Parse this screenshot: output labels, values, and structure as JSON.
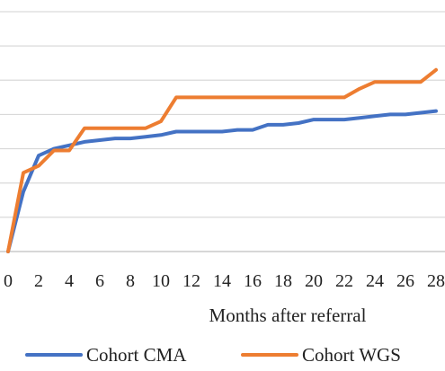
{
  "chart_data": {
    "type": "line",
    "title": "",
    "xlabel": "Months after referral",
    "ylabel": "",
    "x_ticks": [
      "0",
      "2",
      "4",
      "6",
      "8",
      "10",
      "12",
      "14",
      "16",
      "18",
      "20",
      "22",
      "24",
      "26",
      "28"
    ],
    "xlim": [
      0,
      28
    ],
    "ylim": [
      0,
      7
    ],
    "grid": true,
    "legend_position": "bottom",
    "series": [
      {
        "name": "Cohort CMA",
        "color": "#4472C4",
        "x": [
          0,
          1,
          2,
          3,
          4,
          5,
          6,
          7,
          8,
          9,
          10,
          11,
          12,
          13,
          14,
          15,
          16,
          17,
          18,
          19,
          20,
          21,
          22,
          23,
          24,
          25,
          26,
          27,
          28
        ],
        "y": [
          0,
          1.75,
          2.8,
          3.0,
          3.1,
          3.2,
          3.25,
          3.3,
          3.3,
          3.35,
          3.4,
          3.5,
          3.5,
          3.5,
          3.5,
          3.55,
          3.55,
          3.7,
          3.7,
          3.75,
          3.85,
          3.85,
          3.85,
          3.9,
          3.95,
          4.0,
          4.0,
          4.05,
          4.1
        ]
      },
      {
        "name": "Cohort WGS",
        "color": "#ED7D31",
        "x": [
          0,
          1,
          2,
          3,
          4,
          5,
          6,
          7,
          8,
          9,
          10,
          11,
          12,
          13,
          14,
          15,
          16,
          17,
          18,
          19,
          20,
          21,
          22,
          23,
          24,
          25,
          26,
          27,
          28
        ],
        "y": [
          0,
          2.3,
          2.5,
          2.95,
          2.95,
          3.6,
          3.6,
          3.6,
          3.6,
          3.6,
          3.8,
          4.5,
          4.5,
          4.5,
          4.5,
          4.5,
          4.5,
          4.5,
          4.5,
          4.5,
          4.5,
          4.5,
          4.5,
          4.75,
          4.95,
          4.95,
          4.95,
          4.95,
          5.3
        ]
      }
    ]
  }
}
